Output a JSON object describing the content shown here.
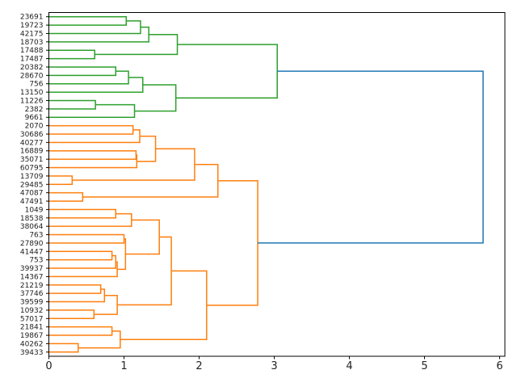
{
  "chart_data": {
    "type": "dendrogram",
    "orientation": "left-to-right",
    "title": "",
    "xlabel": "",
    "ylabel": "",
    "xlim": [
      0,
      6.07
    ],
    "xticks": [
      0,
      1,
      2,
      3,
      4,
      5,
      6
    ],
    "grid": false,
    "colors": {
      "cluster1": "#2ca02c",
      "cluster2": "#ff7f0e",
      "above_threshold": "#1f77b4"
    },
    "leaves": [
      "23691",
      "19723",
      "42175",
      "18703",
      "17488",
      "17487",
      "20382",
      "28670",
      "756",
      "13150",
      "11226",
      "2382",
      "9661",
      "2070",
      "30686",
      "40277",
      "16889",
      "35071",
      "60795",
      "13709",
      "29485",
      "47087",
      "47491",
      "1049",
      "18538",
      "38064",
      "763",
      "27890",
      "41447",
      "753",
      "39937",
      "14367",
      "21219",
      "37746",
      "39599",
      "10932",
      "57017",
      "21841",
      "19867",
      "40262",
      "39433"
    ],
    "merges": [
      {
        "id": "A",
        "left": "23691",
        "right": "19723",
        "height": 1.03,
        "color": "cluster1"
      },
      {
        "id": "B",
        "left": "A",
        "right": "42175",
        "height": 1.22,
        "color": "cluster1"
      },
      {
        "id": "C",
        "left": "B",
        "right": "18703",
        "height": 1.33,
        "color": "cluster1"
      },
      {
        "id": "D",
        "left": "17488",
        "right": "17487",
        "height": 0.61,
        "color": "cluster1"
      },
      {
        "id": "E",
        "left": "C",
        "right": "D",
        "height": 1.71,
        "color": "cluster1"
      },
      {
        "id": "F",
        "left": "20382",
        "right": "28670",
        "height": 0.89,
        "color": "cluster1"
      },
      {
        "id": "G",
        "left": "F",
        "right": "756",
        "height": 1.06,
        "color": "cluster1"
      },
      {
        "id": "H",
        "left": "G",
        "right": "13150",
        "height": 1.25,
        "color": "cluster1"
      },
      {
        "id": "I",
        "left": "11226",
        "right": "2382",
        "height": 0.62,
        "color": "cluster1"
      },
      {
        "id": "J",
        "left": "I",
        "right": "9661",
        "height": 1.14,
        "color": "cluster1"
      },
      {
        "id": "K",
        "left": "H",
        "right": "J",
        "height": 1.69,
        "color": "cluster1"
      },
      {
        "id": "L",
        "left": "E",
        "right": "K",
        "height": 3.04,
        "color": "cluster1"
      },
      {
        "id": "o1",
        "left": "2070",
        "right": "30686",
        "height": 1.12,
        "color": "cluster2"
      },
      {
        "id": "o2",
        "left": "o1",
        "right": "40277",
        "height": 1.21,
        "color": "cluster2"
      },
      {
        "id": "o3",
        "left": "16889",
        "right": "35071",
        "height": 1.16,
        "color": "cluster2"
      },
      {
        "id": "o4",
        "left": "o3",
        "right": "60795",
        "height": 1.17,
        "color": "cluster2"
      },
      {
        "id": "o5",
        "left": "o2",
        "right": "o4",
        "height": 1.42,
        "color": "cluster2"
      },
      {
        "id": "o6",
        "left": "13709",
        "right": "29485",
        "height": 0.31,
        "color": "cluster2"
      },
      {
        "id": "o7",
        "left": "o5",
        "right": "o6",
        "height": 1.94,
        "color": "cluster2"
      },
      {
        "id": "o8",
        "left": "47087",
        "right": "47491",
        "height": 0.45,
        "color": "cluster2"
      },
      {
        "id": "o9",
        "left": "o7",
        "right": "o8",
        "height": 2.25,
        "color": "cluster2"
      },
      {
        "id": "p1",
        "left": "1049",
        "right": "18538",
        "height": 0.89,
        "color": "cluster2"
      },
      {
        "id": "p2",
        "left": "p1",
        "right": "38064",
        "height": 1.1,
        "color": "cluster2"
      },
      {
        "id": "p3",
        "left": "763",
        "right": "27890",
        "height": 1.0,
        "color": "cluster2"
      },
      {
        "id": "p4",
        "left": "41447",
        "right": "753",
        "height": 0.84,
        "color": "cluster2"
      },
      {
        "id": "p5",
        "left": "p4",
        "right": "39937",
        "height": 0.89,
        "color": "cluster2"
      },
      {
        "id": "p6",
        "left": "p5",
        "right": "14367",
        "height": 0.91,
        "color": "cluster2"
      },
      {
        "id": "p7",
        "left": "p3",
        "right": "p6",
        "height": 1.02,
        "color": "cluster2"
      },
      {
        "id": "p8",
        "left": "p2",
        "right": "p7",
        "height": 1.47,
        "color": "cluster2"
      },
      {
        "id": "q1",
        "left": "21219",
        "right": "37746",
        "height": 0.69,
        "color": "cluster2"
      },
      {
        "id": "q2",
        "left": "q1",
        "right": "39599",
        "height": 0.74,
        "color": "cluster2"
      },
      {
        "id": "q3",
        "left": "10932",
        "right": "57017",
        "height": 0.6,
        "color": "cluster2"
      },
      {
        "id": "q4",
        "left": "q2",
        "right": "q3",
        "height": 0.91,
        "color": "cluster2"
      },
      {
        "id": "q5",
        "left": "p8",
        "right": "q4",
        "height": 1.63,
        "color": "cluster2"
      },
      {
        "id": "r1",
        "left": "21841",
        "right": "19867",
        "height": 0.84,
        "color": "cluster2"
      },
      {
        "id": "r2",
        "left": "40262",
        "right": "39433",
        "height": 0.39,
        "color": "cluster2"
      },
      {
        "id": "r3",
        "left": "r1",
        "right": "r2",
        "height": 0.95,
        "color": "cluster2"
      },
      {
        "id": "q6",
        "left": "q5",
        "right": "r3",
        "height": 2.1,
        "color": "cluster2"
      },
      {
        "id": "o10",
        "left": "o9",
        "right": "q6",
        "height": 2.78,
        "color": "cluster2"
      },
      {
        "id": "root",
        "left": "L",
        "right": "o10",
        "height": 5.78,
        "color": "above_threshold"
      }
    ]
  }
}
